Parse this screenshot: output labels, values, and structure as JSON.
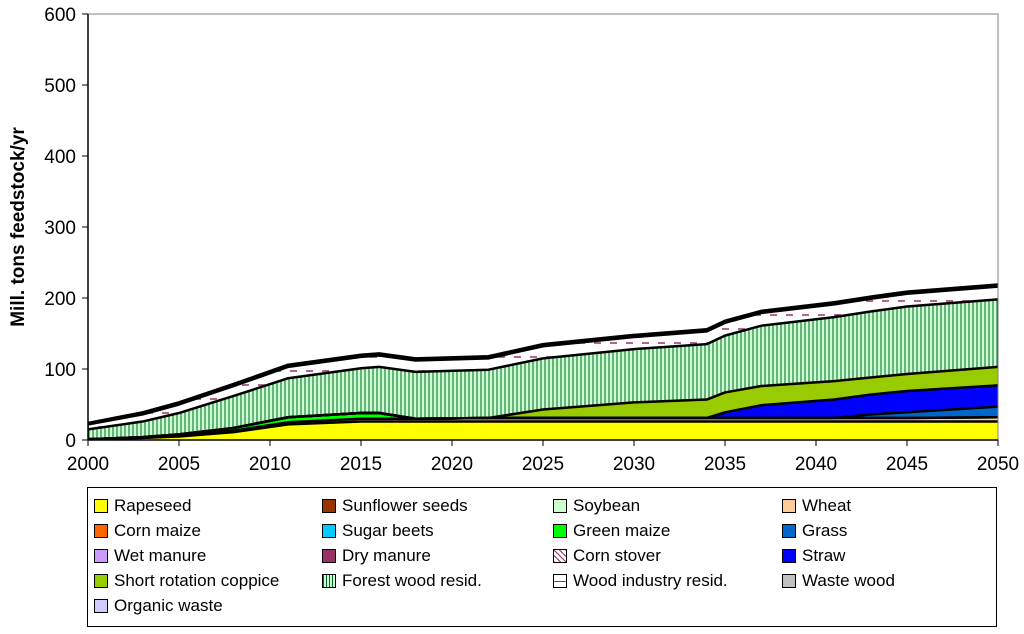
{
  "chart_data": {
    "type": "area",
    "stacked": true,
    "title": "",
    "xlabel": "",
    "ylabel": "Mill. tons feedstock/yr",
    "xlim": [
      2000,
      2050
    ],
    "ylim": [
      0,
      600
    ],
    "xticks": [
      2000,
      2005,
      2010,
      2015,
      2020,
      2025,
      2030,
      2035,
      2040,
      2045,
      2050
    ],
    "yticks": [
      0,
      100,
      200,
      300,
      400,
      500,
      600
    ],
    "x": [
      2000,
      2003,
      2005,
      2008,
      2011,
      2015,
      2016,
      2018,
      2022,
      2025,
      2030,
      2034,
      2035,
      2037,
      2041,
      2043,
      2045,
      2050
    ],
    "series": [
      {
        "name": "Rapeseed",
        "color": "#ffff00",
        "values": [
          1,
          3,
          5,
          11,
          22,
          26,
          26,
          26,
          26,
          26,
          26,
          26,
          26,
          26,
          26,
          26,
          26,
          26
        ]
      },
      {
        "name": "Sunflower seeds",
        "color": "#993300",
        "values": [
          0,
          0,
          0,
          0,
          0,
          0,
          0,
          0,
          0,
          0,
          0,
          0,
          0,
          0,
          0,
          0,
          0,
          0
        ]
      },
      {
        "name": "Soybean",
        "color": "#ccffcc",
        "values": [
          0,
          0,
          0,
          0,
          0,
          0,
          0,
          0,
          0,
          0,
          0,
          0,
          0,
          0,
          0,
          0,
          0,
          0
        ]
      },
      {
        "name": "Wheat",
        "color": "#ffcc99",
        "values": [
          0,
          0,
          1,
          2,
          3,
          4,
          4,
          4,
          5,
          5,
          5,
          5,
          5,
          5,
          5,
          5,
          5,
          6
        ]
      },
      {
        "name": "Corn maize",
        "color": "#ff6600",
        "values": [
          0,
          0,
          0,
          0,
          0,
          0,
          0,
          0,
          0,
          0,
          0,
          0,
          0,
          0,
          0,
          0,
          0,
          0
        ]
      },
      {
        "name": "Sugar beets",
        "color": "#00ccff",
        "values": [
          0,
          0,
          0,
          0,
          0,
          0,
          0,
          0,
          0,
          0,
          0,
          0,
          0,
          0,
          0,
          0,
          0,
          0
        ]
      },
      {
        "name": "Green maize",
        "color": "#00ff00",
        "values": [
          0,
          1,
          2,
          4,
          7,
          8,
          8,
          0,
          0,
          0,
          0,
          0,
          0,
          0,
          0,
          0,
          0,
          0
        ]
      },
      {
        "name": "Grass",
        "color": "#0066cc",
        "values": [
          0,
          0,
          0,
          0,
          0,
          0,
          0,
          0,
          0,
          0,
          0,
          0,
          0,
          0,
          0,
          5,
          8,
          15
        ]
      },
      {
        "name": "Wet manure",
        "color": "#cc99ff",
        "values": [
          0,
          0,
          0,
          0,
          0,
          0,
          0,
          0,
          0,
          0,
          0,
          0,
          0,
          0,
          0,
          0,
          0,
          0
        ]
      },
      {
        "name": "Dry manure",
        "color": "#993366",
        "values": [
          0,
          0,
          0,
          0,
          0,
          0,
          0,
          0,
          0,
          0,
          0,
          0,
          0,
          0,
          0,
          0,
          0,
          0
        ]
      },
      {
        "name": "Corn stover",
        "color": "#ffffff",
        "pattern": "cross",
        "values": [
          0,
          0,
          0,
          0,
          0,
          0,
          0,
          0,
          0,
          0,
          0,
          0,
          0,
          0,
          0,
          0,
          0,
          0
        ]
      },
      {
        "name": "Straw",
        "color": "#0000ff",
        "values": [
          0,
          0,
          0,
          0,
          0,
          0,
          0,
          0,
          0,
          0,
          0,
          0,
          8,
          18,
          26,
          28,
          30,
          30
        ]
      },
      {
        "name": "Short rotation coppice",
        "color": "#99cc00",
        "values": [
          0,
          0,
          0,
          0,
          0,
          0,
          0,
          0,
          0,
          12,
          22,
          26,
          28,
          27,
          26,
          24,
          24,
          26
        ]
      },
      {
        "name": "Forest wood resid.",
        "color": "#ccffcc",
        "pattern": "vertical",
        "values": [
          14,
          22,
          30,
          45,
          55,
          63,
          65,
          66,
          68,
          72,
          75,
          78,
          80,
          85,
          90,
          93,
          95,
          95
        ]
      },
      {
        "name": "Wood industry resid.",
        "color": "#ffffff",
        "pattern": "dashes",
        "values": [
          7,
          10,
          12,
          14,
          16,
          16,
          16,
          16,
          16,
          17,
          17,
          18,
          18,
          18,
          18,
          18,
          18,
          18
        ]
      },
      {
        "name": "Waste wood",
        "color": "#c0c0c0",
        "values": [
          2,
          3,
          3,
          3,
          3,
          3,
          3,
          3,
          3,
          3,
          3,
          3,
          3,
          3,
          3,
          3,
          3,
          3
        ]
      },
      {
        "name": "Organic waste",
        "color": "#ccccff",
        "values": [
          0,
          0,
          0,
          0,
          0,
          0,
          0,
          0,
          0,
          0,
          0,
          0,
          0,
          0,
          0,
          0,
          0,
          0
        ]
      }
    ],
    "legend": [
      "Rapeseed",
      "Sunflower seeds",
      "Soybean",
      "Wheat",
      "Corn maize",
      "Sugar beets",
      "Green maize",
      "Grass",
      "Wet manure",
      "Dry manure",
      "Corn stover",
      "Straw",
      "Short rotation coppice",
      "Forest wood resid.",
      "Wood industry resid.",
      "Waste wood",
      "Organic waste"
    ],
    "legend_position": "bottom",
    "grid": false
  }
}
